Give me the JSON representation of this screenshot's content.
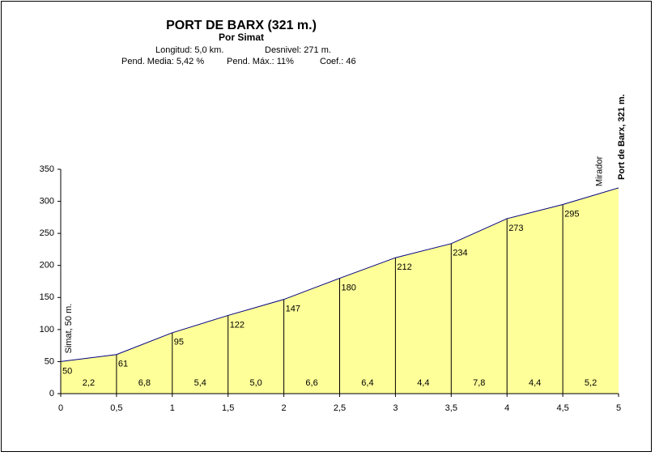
{
  "chart_data": {
    "type": "area",
    "title": "PORT DE BARX (321 m.)",
    "subtitle": "Por Simat",
    "info": [
      [
        "Longitud: 5,0 km.",
        "Desnivel: 271 m."
      ],
      [
        "Pend. Media: 5,42 %",
        "Pend. Máx.: 11%",
        "Coef.:  46"
      ]
    ],
    "x": [
      0,
      0.5,
      1,
      1.5,
      2,
      2.5,
      3,
      3.5,
      4,
      4.5,
      5
    ],
    "values": [
      50,
      61,
      95,
      122,
      147,
      180,
      212,
      234,
      273,
      295,
      321
    ],
    "segment_labels": [
      "2,2",
      "6,8",
      "5,4",
      "5,0",
      "6,6",
      "6,4",
      "4,4",
      "7,8",
      "4,4",
      "5,2"
    ],
    "annotations": [
      {
        "text": "Simat, 50 m.",
        "x": 0
      },
      {
        "text": "Mirador",
        "x": 4.8
      },
      {
        "text": "Port de Barx, 321 m.",
        "x": 5,
        "bold": true
      }
    ],
    "color": "#ffff99",
    "line_color": "#000080",
    "xlim": [
      0,
      5
    ],
    "xticks": [
      0,
      {
        "value": 0.5,
        "label": "0,5"
      },
      1,
      {
        "value": 1.5,
        "label": "1,5"
      },
      2,
      {
        "value": 2.5,
        "label": "2,5"
      },
      3,
      {
        "value": 3.5,
        "label": "3,5"
      },
      4,
      {
        "value": 4.5,
        "label": "4,5"
      },
      5
    ],
    "ylim": [
      0,
      350
    ],
    "yticks": [
      0,
      50,
      100,
      150,
      200,
      250,
      300,
      350
    ]
  }
}
